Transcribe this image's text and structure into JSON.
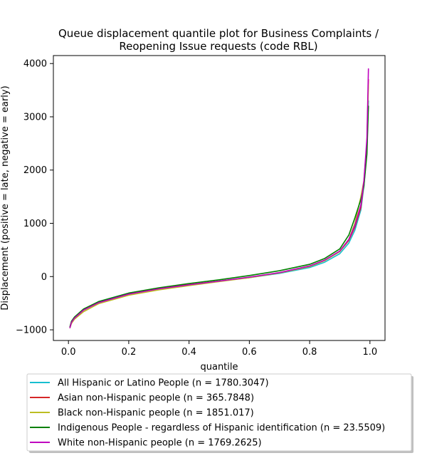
{
  "chart_data": {
    "type": "line",
    "title_lines": [
      "Queue displacement quantile plot for Business Complaints /",
      "Reopening Issue  requests (code RBL)"
    ],
    "xlabel": "quantile",
    "ylabel": "Displacement (positive = late, negative = early)",
    "xlim": [
      -0.05,
      1.05
    ],
    "ylim": [
      -1200,
      4150
    ],
    "xticks": [
      0.0,
      0.2,
      0.4,
      0.6,
      0.8,
      1.0
    ],
    "xtick_labels": [
      "0.0",
      "0.2",
      "0.4",
      "0.6",
      "0.8",
      "1.0"
    ],
    "yticks": [
      -1000,
      0,
      1000,
      2000,
      3000,
      4000
    ],
    "ytick_labels": [
      "−1000",
      "0",
      "1000",
      "2000",
      "3000",
      "4000"
    ],
    "grid": false,
    "legend_placement": "below",
    "x": [
      0.005,
      0.01,
      0.02,
      0.05,
      0.1,
      0.2,
      0.3,
      0.4,
      0.5,
      0.6,
      0.7,
      0.8,
      0.85,
      0.9,
      0.93,
      0.95,
      0.97,
      0.98,
      0.99,
      0.995
    ],
    "series": [
      {
        "name": "All Hispanic or Latino People (n = 1780.3047)",
        "color": "#17becf",
        "values": [
          -960,
          -860,
          -780,
          -620,
          -470,
          -310,
          -220,
          -150,
          -85,
          -20,
          60,
          170,
          270,
          430,
          630,
          870,
          1250,
          1700,
          2400,
          3300
        ]
      },
      {
        "name": "Asian non-Hispanic people (n = 365.7848)",
        "color": "#d62728",
        "values": [
          -950,
          -860,
          -775,
          -630,
          -490,
          -320,
          -225,
          -150,
          -85,
          -15,
          70,
          190,
          300,
          470,
          680,
          930,
          1300,
          1750,
          2500,
          3700
        ]
      },
      {
        "name": "Black non-Hispanic people (n = 1851.017)",
        "color": "#bcbd22",
        "values": [
          -960,
          -880,
          -800,
          -660,
          -510,
          -350,
          -250,
          -170,
          -95,
          -20,
          70,
          190,
          300,
          470,
          700,
          1000,
          1500,
          1800,
          2500,
          3600
        ]
      },
      {
        "name": "Indigenous People - regardless of Hispanic identification (n = 23.5509)",
        "color": "#008000",
        "values": [
          -940,
          -840,
          -760,
          -610,
          -470,
          -310,
          -210,
          -130,
          -60,
          20,
          110,
          230,
          340,
          520,
          780,
          1100,
          1450,
          1700,
          2300,
          3200
        ]
      },
      {
        "name": "White non-Hispanic people (n = 1769.2625)",
        "color": "#bf00bf",
        "values": [
          -960,
          -860,
          -780,
          -630,
          -490,
          -330,
          -230,
          -155,
          -85,
          -10,
          75,
          200,
          310,
          480,
          700,
          960,
          1350,
          1800,
          2600,
          3900
        ]
      }
    ]
  }
}
